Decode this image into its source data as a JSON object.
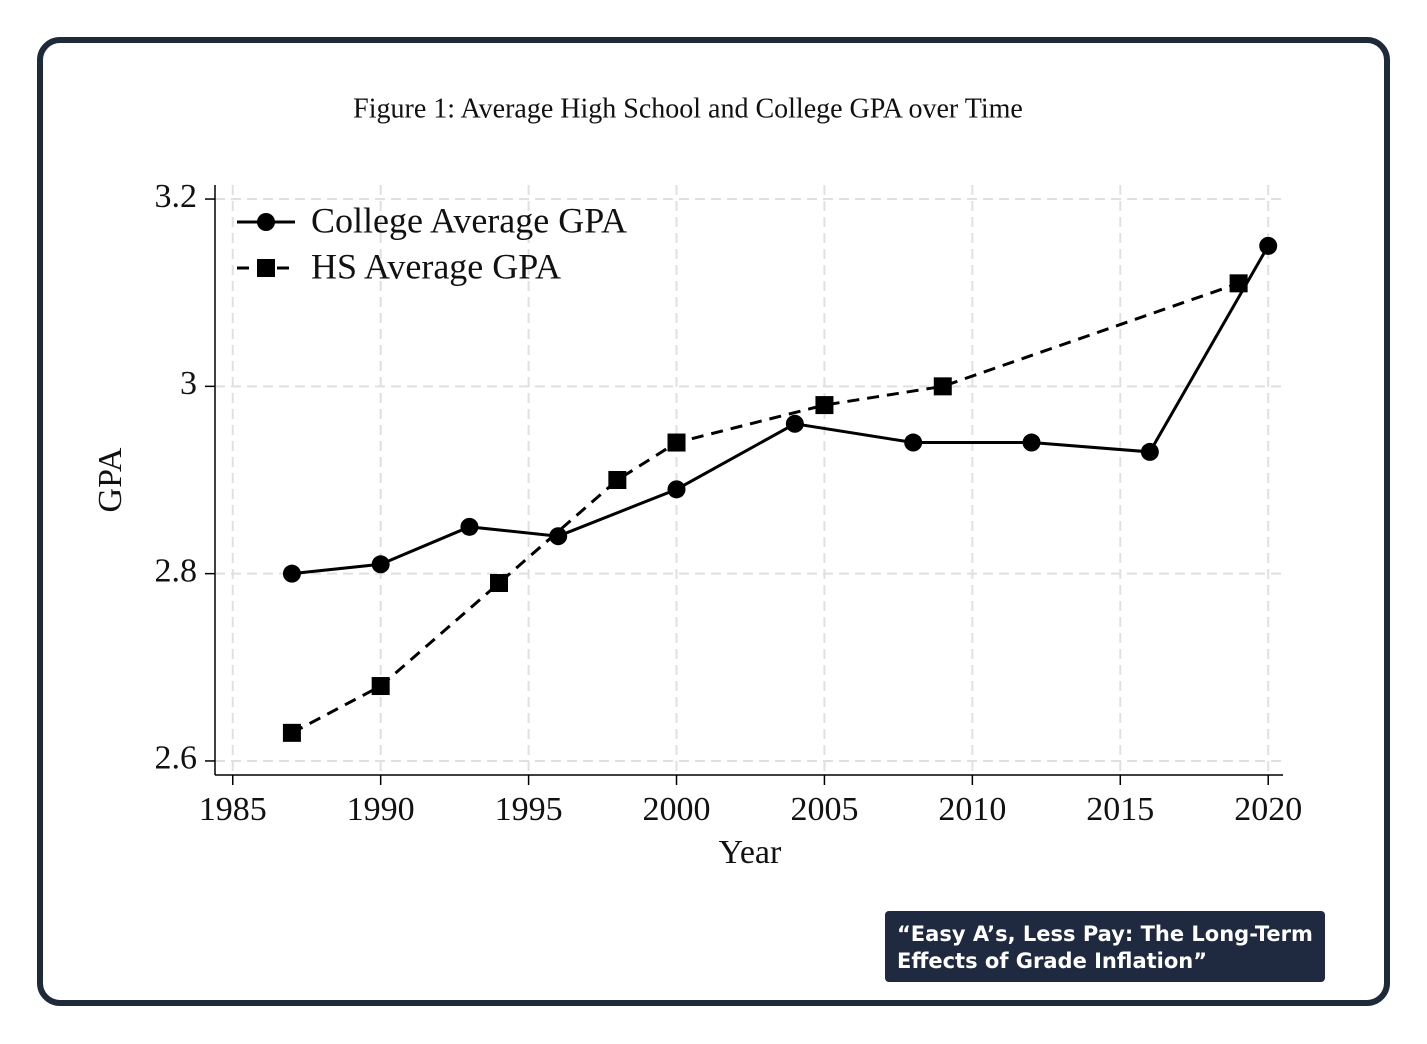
{
  "chart_data": {
    "type": "line",
    "title": "Figure 1:  Average High School and College GPA over Time",
    "x_label": "Year",
    "y_label": "GPA",
    "series": [
      {
        "name": "College Average GPA",
        "color": "#000000",
        "marker": "circle",
        "dash": "solid",
        "x": [
          1987,
          1990,
          1993,
          1996,
          2000,
          2004,
          2008,
          2012,
          2016,
          2020
        ],
        "values": [
          2.8,
          2.81,
          2.85,
          2.84,
          2.89,
          2.96,
          2.94,
          2.94,
          2.93,
          3.15
        ]
      },
      {
        "name": "HS Average GPA",
        "color": "#000000",
        "marker": "square",
        "dash": "dashed",
        "x": [
          1987,
          1990,
          1994,
          1998,
          2000,
          2005,
          2009,
          2019
        ],
        "values": [
          2.63,
          2.68,
          2.79,
          2.9,
          2.94,
          2.98,
          3.0,
          3.11
        ]
      }
    ],
    "xlim": [
      1984.4,
      2020.5
    ],
    "xticks": [
      1985,
      1990,
      1995,
      2000,
      2005,
      2010,
      2015,
      2020
    ],
    "ylim": [
      2.585,
      3.215
    ],
    "yticks": [
      2.6,
      2.8,
      3,
      3.2
    ],
    "grid": true,
    "legend": "upper left"
  },
  "caption": {
    "lines": [
      "“Easy A’s, Less Pay: The Long-Term",
      "Effects of Grade Inflation”"
    ]
  }
}
